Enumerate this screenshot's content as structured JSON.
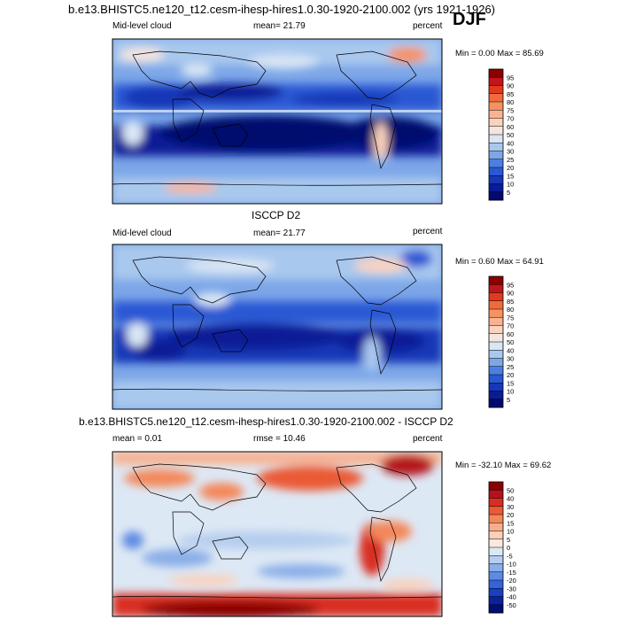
{
  "title": "b.e13.BHISTC5.ne120_t12.cesm-ihesp-hires1.0.30-1920-2100.002 (yrs 1921-1926)",
  "season": "DJF",
  "chart_data": [
    {
      "type": "heatmap",
      "panel": "model",
      "title": "",
      "left_label": "Mid-level cloud",
      "center_label": "mean=  21.79",
      "right_label": "percent",
      "min_max": "Min =   0.00 Max =  85.69",
      "colorbar_levels": [
        "95",
        "90",
        "85",
        "80",
        "75",
        "70",
        "60",
        "50",
        "40",
        "30",
        "25",
        "20",
        "15",
        "10",
        "5"
      ],
      "colorbar_colors": [
        "#8b0000",
        "#c0161b",
        "#e03a1f",
        "#ef6a3c",
        "#f6925f",
        "#f9b394",
        "#fbd3bd",
        "#f4e6de",
        "#d9e6f4",
        "#a9c8ee",
        "#7ca6e8",
        "#4d7fe0",
        "#2a58d4",
        "#1537b8",
        "#0a1b96",
        "#020a6e"
      ],
      "mean": 21.79,
      "min": 0.0,
      "max": 85.69,
      "units": "percent"
    },
    {
      "type": "heatmap",
      "panel": "obs",
      "title": "ISCCP D2",
      "left_label": "Mid-level cloud",
      "center_label": "mean=  21.77",
      "right_label": "percent",
      "min_max": "Min =   0.60 Max =  64.91",
      "colorbar_levels": [
        "95",
        "90",
        "85",
        "80",
        "75",
        "70",
        "60",
        "50",
        "40",
        "30",
        "25",
        "20",
        "15",
        "10",
        "5"
      ],
      "colorbar_colors": [
        "#8b0000",
        "#c0161b",
        "#e03a1f",
        "#ef6a3c",
        "#f6925f",
        "#f9b394",
        "#fbd3bd",
        "#f4e6de",
        "#d9e6f4",
        "#a9c8ee",
        "#7ca6e8",
        "#4d7fe0",
        "#2a58d4",
        "#1537b8",
        "#0a1b96",
        "#020a6e"
      ],
      "mean": 21.77,
      "min": 0.6,
      "max": 64.91,
      "units": "percent"
    },
    {
      "type": "heatmap",
      "panel": "difference",
      "title": "b.e13.BHISTC5.ne120_t12.cesm-ihesp-hires1.0.30-1920-2100.002 - ISCCP D2",
      "left_label": "mean =   0.01",
      "center_label": "rmse =  10.46",
      "right_label": "percent",
      "min_max": "Min = -32.10 Max =  69.62",
      "colorbar_levels": [
        "50",
        "40",
        "30",
        "20",
        "15",
        "10",
        "5",
        "0",
        "-5",
        "-10",
        "-15",
        "-20",
        "-30",
        "-40",
        "-50"
      ],
      "colorbar_colors": [
        "#8b0000",
        "#b5121b",
        "#d92d21",
        "#ea5a35",
        "#f4875a",
        "#f8ae8c",
        "#fbd0ba",
        "#fbe9df",
        "#dde8f5",
        "#b5cdee",
        "#89aee8",
        "#5d8ae2",
        "#3563d8",
        "#1a3fc0",
        "#0b229f",
        "#030d74"
      ],
      "mean": 0.01,
      "rmse": 10.46,
      "min": -32.1,
      "max": 69.62,
      "units": "percent"
    }
  ]
}
